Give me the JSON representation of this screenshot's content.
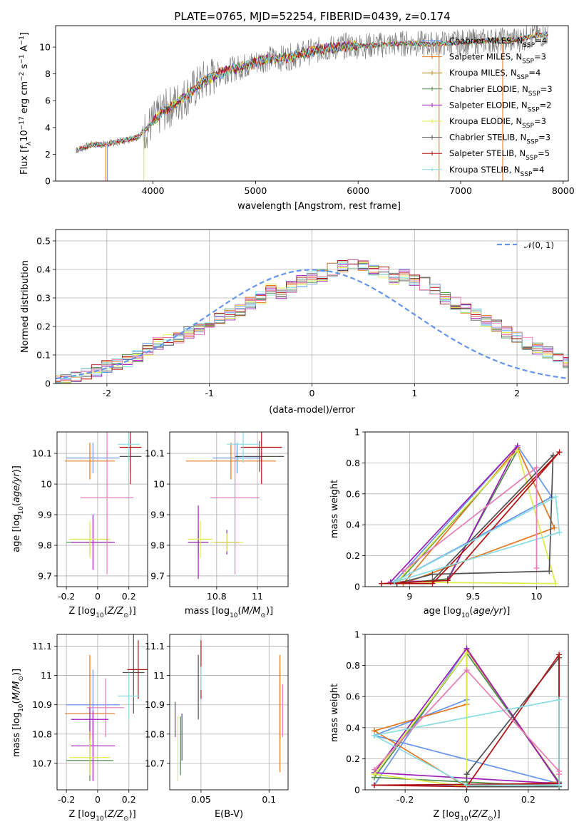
{
  "title": "PLATE=0765, MJD=52254, FIBERID=0439, z=0.174",
  "colors": [
    "#6495ed",
    "#e3761f",
    "#4e8c4c",
    "#9a1fb8",
    "#dceb4a",
    "#525252",
    "#b01010",
    "#88dde3",
    "#e57bb7",
    "#808080"
  ],
  "chart_data": [
    {
      "id": "spectrum",
      "type": "line",
      "title": "PLATE=0765, MJD=52254, FIBERID=0439, z=0.174",
      "xlabel": "wavelength [Angstrom, rest frame]",
      "ylabel": "Flux [f_λ10^-17 erg cm^-2 s^-1 A^-1]",
      "xlim": [
        3050,
        8050
      ],
      "ylim": [
        0,
        11.6
      ],
      "xticks": [
        4000,
        5000,
        6000,
        7000,
        8000
      ],
      "yticks": [
        0,
        2,
        4,
        6,
        8,
        10
      ],
      "grid": false,
      "legend_position": "right",
      "data_color": "#808080",
      "continuum": {
        "x": [
          3250,
          3400,
          3550,
          3700,
          3850,
          3950,
          4100,
          4300,
          4500,
          4700,
          4900,
          5100,
          5300,
          5500,
          5700,
          5900,
          6100,
          6300,
          6500,
          6700,
          6900,
          7100,
          7300,
          7500,
          7700,
          7850
        ],
        "y": [
          2.3,
          2.7,
          2.75,
          3.0,
          3.3,
          4.0,
          5.2,
          6.2,
          7.5,
          8.2,
          8.6,
          9.1,
          9.2,
          9.6,
          9.9,
          10.1,
          10.1,
          10.2,
          10.3,
          10.2,
          10.3,
          10.4,
          10.5,
          10.5,
          10.8,
          11.0
        ]
      },
      "series": [
        {
          "name": "Chabrier MILES, N_SSP=4",
          "color": "#6495ed"
        },
        {
          "name": "Salpeter MILES, N_SSP=3",
          "color": "#e3761f"
        },
        {
          "name": "Kroupa MILES, N_SSP=4",
          "color": "#b8860b"
        },
        {
          "name": "Chabrier ELODIE, N_SSP=3",
          "color": "#4e8c4c"
        },
        {
          "name": "Salpeter ELODIE, N_SSP=2",
          "color": "#9a1fb8"
        },
        {
          "name": "Kroupa ELODIE, N_SSP=3",
          "color": "#dceb4a"
        },
        {
          "name": "Chabrier STELIB, N_SSP=3",
          "color": "#525252"
        },
        {
          "name": "Salpeter STELIB, N_SSP=5",
          "color": "#b01010"
        },
        {
          "name": "Kroupa STELIB, N_SSP=4",
          "color": "#88dde3"
        }
      ]
    },
    {
      "id": "residuals",
      "type": "line",
      "xlabel": "(data-model)/error",
      "ylabel": "Normed distribution",
      "xlim": [
        -2.5,
        2.5
      ],
      "ylim": [
        0,
        0.54
      ],
      "xticks": [
        -2,
        -1,
        0,
        1,
        2
      ],
      "yticks": [
        0.0,
        0.1,
        0.2,
        0.3,
        0.4,
        0.5
      ],
      "grid": true,
      "legend_position": "top-right",
      "gaussian": {
        "name": "𝒩(0, 1)",
        "color": "#6495ed",
        "mu": 0,
        "sigma": 1
      },
      "bin_width": 0.1,
      "base_hist": [
        0.005,
        0.01,
        0.02,
        0.03,
        0.045,
        0.06,
        0.07,
        0.08,
        0.095,
        0.12,
        0.14,
        0.15,
        0.16,
        0.18,
        0.19,
        0.21,
        0.23,
        0.24,
        0.26,
        0.28,
        0.3,
        0.33,
        0.32,
        0.34,
        0.36,
        0.37,
        0.38,
        0.4,
        0.41,
        0.42,
        0.41,
        0.4,
        0.39,
        0.37,
        0.38,
        0.36,
        0.35,
        0.33,
        0.3,
        0.28,
        0.26,
        0.24,
        0.22,
        0.2,
        0.18,
        0.16,
        0.14,
        0.12,
        0.11,
        0.09,
        0.075
      ]
    },
    {
      "id": "age-vs-Z",
      "type": "scatter",
      "xlabel": "Z [log10(Z/Z☉)]",
      "ylabel": "age  [log10(age/yr)]",
      "xlim": [
        -0.26,
        0.32
      ],
      "ylim": [
        9.665,
        10.17
      ],
      "xticks": [
        -0.2,
        0.0,
        0.2
      ],
      "yticks": [
        9.7,
        9.8,
        9.9,
        10.0,
        10.1
      ],
      "grid": true,
      "points": [
        {
          "c": 0,
          "x": -0.03,
          "y": 10.085,
          "xe": 0.17,
          "ye": 0.05
        },
        {
          "c": 1,
          "x": -0.05,
          "y": 10.075,
          "xe": 0.16,
          "ye": 0.06
        },
        {
          "c": 2,
          "x": -0.05,
          "y": 9.81,
          "xe": 0.15,
          "ye": 0.04
        },
        {
          "c": 3,
          "x": -0.03,
          "y": 9.81,
          "xe": 0.14,
          "ye": 0.09
        },
        {
          "c": 4,
          "x": -0.05,
          "y": 9.82,
          "xe": 0.13,
          "ye": 0.06
        },
        {
          "c": 5,
          "x": 0.21,
          "y": 10.09,
          "xe": 0.07,
          "ye": 0.05
        },
        {
          "c": 6,
          "x": 0.21,
          "y": 10.12,
          "xe": 0.07,
          "ye": 0.12
        },
        {
          "c": 7,
          "x": 0.2,
          "y": 10.13,
          "xe": 0.07,
          "ye": 0.06
        },
        {
          "c": 8,
          "x": 0.06,
          "y": 9.955,
          "xe": 0.17,
          "ye": 0.25
        }
      ]
    },
    {
      "id": "age-vs-mass",
      "type": "scatter",
      "xlabel": "mass [log10(M/M☉)]",
      "ylabel": "",
      "xlim": [
        10.57,
        11.15
      ],
      "ylim": [
        9.665,
        10.17
      ],
      "xticks": [
        10.8,
        11.0
      ],
      "yticks": [
        9.7,
        9.8,
        9.9,
        10.0,
        10.1
      ],
      "grid": true,
      "points": [
        {
          "c": 0,
          "x": 10.9,
          "y": 10.085,
          "xe": 0.12,
          "ye": 0.05
        },
        {
          "c": 1,
          "x": 10.87,
          "y": 10.075,
          "xe": 0.22,
          "ye": 0.06
        },
        {
          "c": 2,
          "x": 10.71,
          "y": 9.81,
          "xe": 0.05,
          "ye": 0.04
        },
        {
          "c": 3,
          "x": 10.71,
          "y": 9.81,
          "xe": 0.05,
          "ye": 0.12
        },
        {
          "c": 4,
          "x": 10.72,
          "y": 9.82,
          "xe": 0.06,
          "ye": 0.06
        },
        {
          "c": 5,
          "x": 11.01,
          "y": 10.09,
          "xe": 0.12,
          "ye": 0.05
        },
        {
          "c": 6,
          "x": 11.02,
          "y": 10.12,
          "xe": 0.1,
          "ye": 0.12
        },
        {
          "c": 7,
          "x": 10.93,
          "y": 10.13,
          "xe": 0.08,
          "ye": 0.06
        },
        {
          "c": 8,
          "x": 10.89,
          "y": 9.955,
          "xe": 0.12,
          "ye": 0.25
        },
        {
          "c": 3,
          "x": 10.85,
          "y": 9.81,
          "xe": 0.06,
          "ye": 0.04
        },
        {
          "c": 4,
          "x": 10.85,
          "y": 9.81,
          "xe": 0.08,
          "ye": 0.03
        }
      ]
    },
    {
      "id": "weight-vs-age",
      "type": "line",
      "xlabel": "age  [log10(age/yr)]",
      "ylabel": "mass weight",
      "xlim": [
        8.65,
        10.25
      ],
      "ylim": [
        0,
        1
      ],
      "xticks": [
        9.0,
        9.5,
        10.0
      ],
      "yticks": [
        0.0,
        0.2,
        0.4,
        0.6,
        0.8,
        1.0
      ],
      "grid": true,
      "series": [
        {
          "c": 0,
          "x": [
            8.88,
            9.85,
            10.12,
            8.88
          ],
          "y": [
            0.03,
            0.91,
            0.58,
            0.03
          ]
        },
        {
          "c": 1,
          "x": [
            8.95,
            9.85,
            10.14,
            8.95
          ],
          "y": [
            0.02,
            0.9,
            0.38,
            0.02
          ]
        },
        {
          "c": 2,
          "x": [
            8.9,
            9.3,
            9.85,
            8.9
          ],
          "y": [
            0.02,
            0.05,
            0.88,
            0.02
          ]
        },
        {
          "c": 3,
          "x": [
            8.85,
            9.85,
            9.3,
            8.85
          ],
          "y": [
            0.03,
            0.91,
            0.04,
            0.03
          ]
        },
        {
          "c": 4,
          "x": [
            8.9,
            9.85,
            10.15,
            8.9
          ],
          "y": [
            0.03,
            0.88,
            0.02,
            0.03
          ]
        },
        {
          "c": 5,
          "x": [
            8.9,
            9.18,
            10.1,
            10.13,
            9.18,
            8.9
          ],
          "y": [
            0.02,
            0.08,
            0.1,
            0.85,
            0.04,
            0.02
          ]
        },
        {
          "c": 6,
          "x": [
            8.78,
            9.18,
            10.18,
            9.3,
            8.78
          ],
          "y": [
            0.02,
            0.02,
            0.87,
            0.04,
            0.02
          ]
        },
        {
          "c": 7,
          "x": [
            8.88,
            10.15,
            10.18,
            8.88
          ],
          "y": [
            0.03,
            0.58,
            0.35,
            0.03
          ]
        },
        {
          "c": 8,
          "x": [
            8.95,
            10.0,
            10.0
          ],
          "y": [
            0.1,
            0.77,
            0.12
          ]
        }
      ]
    },
    {
      "id": "mass-vs-Z",
      "type": "scatter",
      "xlabel": "Z [log10(Z/Z☉)]",
      "ylabel": "mass [log10(M/M☉)]",
      "xlim": [
        -0.26,
        0.32
      ],
      "ylim": [
        10.61,
        11.14
      ],
      "xticks": [
        -0.2,
        0.0,
        0.2
      ],
      "yticks": [
        10.7,
        10.8,
        10.9,
        11.0,
        11.1
      ],
      "grid": true,
      "points": [
        {
          "c": 0,
          "x": -0.03,
          "y": 10.9,
          "xe": 0.17,
          "ye": 0.12
        },
        {
          "c": 1,
          "x": -0.05,
          "y": 10.87,
          "xe": 0.16,
          "ye": 0.2
        },
        {
          "c": 2,
          "x": -0.05,
          "y": 10.71,
          "xe": 0.15,
          "ye": 0.07
        },
        {
          "c": 3,
          "x": -0.03,
          "y": 10.76,
          "xe": 0.14,
          "ye": 0.12
        },
        {
          "c": 4,
          "x": -0.05,
          "y": 10.72,
          "xe": 0.13,
          "ye": 0.06
        },
        {
          "c": 5,
          "x": 0.23,
          "y": 11.01,
          "xe": 0.07,
          "ye": 0.14
        },
        {
          "c": 6,
          "x": 0.26,
          "y": 11.02,
          "xe": 0.07,
          "ye": 0.1
        },
        {
          "c": 7,
          "x": 0.2,
          "y": 10.93,
          "xe": 0.07,
          "ye": 0.08
        },
        {
          "c": 8,
          "x": 0.05,
          "y": 10.89,
          "xe": 0.12,
          "ye": 0.1
        },
        {
          "c": 3,
          "x": -0.05,
          "y": 10.85,
          "xe": 0.12,
          "ye": 0.04
        }
      ]
    },
    {
      "id": "mass-vs-EBV",
      "type": "scatter",
      "xlabel": "E(B-V)",
      "ylabel": "",
      "xlim": [
        0.027,
        0.114
      ],
      "ylim": [
        10.61,
        11.14
      ],
      "xticks": [
        0.05,
        0.1
      ],
      "yticks": [
        10.7,
        10.8,
        10.9,
        11.0,
        11.1
      ],
      "grid": true,
      "points": [
        {
          "c": 0,
          "x": 0.108,
          "y": 10.9,
          "ye": 0.12
        },
        {
          "c": 1,
          "x": 0.108,
          "y": 10.87,
          "ye": 0.2
        },
        {
          "c": 2,
          "x": 0.035,
          "y": 10.76,
          "ye": 0.1
        },
        {
          "c": 3,
          "x": 0.031,
          "y": 10.85,
          "ye": 0.06
        },
        {
          "c": 4,
          "x": 0.033,
          "y": 10.75,
          "ye": 0.11
        },
        {
          "c": 5,
          "x": 0.048,
          "y": 10.96,
          "ye": 0.11
        },
        {
          "c": 6,
          "x": 0.05,
          "y": 11.02,
          "ye": 0.1
        },
        {
          "c": 7,
          "x": 0.05,
          "y": 10.99,
          "ye": 0.04
        },
        {
          "c": 8,
          "x": 0.11,
          "y": 10.88,
          "ye": 0.09
        },
        {
          "c": 5,
          "x": 0.036,
          "y": 10.79,
          "ye": 0.08
        }
      ]
    },
    {
      "id": "weight-vs-Z",
      "type": "line",
      "xlabel": "Z [log10(Z/Z☉)]",
      "ylabel": "mass weight",
      "xlim": [
        -0.33,
        0.33
      ],
      "ylim": [
        0,
        1
      ],
      "xticks": [
        -0.2,
        0.0,
        0.2
      ],
      "yticks": [
        0.0,
        0.2,
        0.4,
        0.6,
        0.8,
        1.0
      ],
      "grid": true,
      "series": [
        {
          "c": 0,
          "x": [
            -0.3,
            0.0,
            0.0,
            -0.3,
            0.0,
            0.3,
            -0.3
          ],
          "y": [
            0.35,
            0.58,
            0.91,
            0.03,
            0.03,
            0.04,
            0.35
          ]
        },
        {
          "c": 1,
          "x": [
            -0.3,
            0.0,
            0.0,
            0.3,
            0.0,
            -0.3
          ],
          "y": [
            0.38,
            0.55,
            0.9,
            0.05,
            0.02,
            0.38
          ]
        },
        {
          "c": 2,
          "x": [
            -0.3,
            0.0,
            0.3,
            0.3,
            -0.3
          ],
          "y": [
            0.08,
            0.88,
            0.05,
            0.02,
            0.08
          ]
        },
        {
          "c": 3,
          "x": [
            -0.3,
            0.0,
            0.3,
            -0.3
          ],
          "y": [
            0.11,
            0.91,
            0.04,
            0.11
          ]
        },
        {
          "c": 4,
          "x": [
            -0.3,
            0.0,
            0.0,
            -0.3
          ],
          "y": [
            0.1,
            0.88,
            0.02,
            0.1
          ]
        },
        {
          "c": 5,
          "x": [
            0.0,
            0.0,
            0.3,
            0.3,
            0.0
          ],
          "y": [
            0.02,
            0.1,
            0.85,
            0.02,
            0.02
          ]
        },
        {
          "c": 6,
          "x": [
            -0.3,
            0.0,
            0.3,
            0.3,
            -0.3
          ],
          "y": [
            0.03,
            0.02,
            0.87,
            0.04,
            0.03
          ]
        },
        {
          "c": 7,
          "x": [
            -0.3,
            0.0,
            0.3,
            0.3,
            -0.3
          ],
          "y": [
            0.35,
            0.03,
            0.03,
            0.58,
            0.35
          ]
        },
        {
          "c": 8,
          "x": [
            -0.3,
            0.0,
            0.3,
            0.3
          ],
          "y": [
            0.13,
            0.77,
            0.12,
            0.1
          ]
        }
      ]
    }
  ]
}
